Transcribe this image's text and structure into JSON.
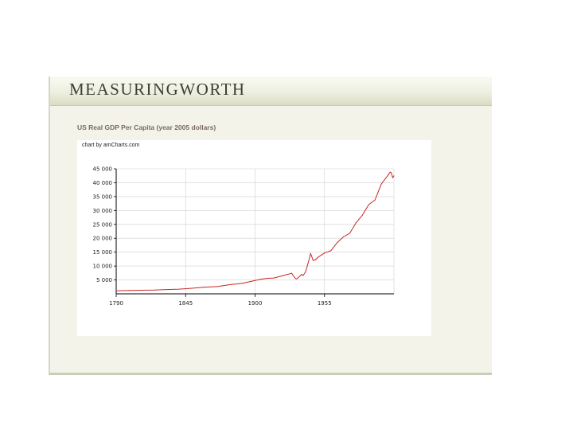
{
  "site": {
    "brand": "MEASURINGWORTH"
  },
  "colors": {
    "line": "#c62828",
    "grid": "#d0d0d0",
    "axis": "#000000"
  },
  "chart_data": {
    "type": "line",
    "title": "US Real GDP Per Capita (year 2005 dollars)",
    "credit": "chart by amCharts.com",
    "xlabel": "",
    "ylabel": "",
    "xlim": [
      1790,
      2010
    ],
    "ylim": [
      0,
      45000
    ],
    "x_ticks": [
      "1790",
      "1845",
      "1900",
      "1955"
    ],
    "y_ticks": [
      "45 000",
      "40 000",
      "35 000",
      "30 000",
      "25 000",
      "20 000",
      "15 000",
      "10 000",
      "5 000"
    ],
    "grid": true,
    "legend": "none",
    "series": [
      {
        "x": [
          1790,
          1800,
          1810,
          1820,
          1830,
          1840,
          1850,
          1860,
          1870,
          1880,
          1890,
          1900,
          1905,
          1910,
          1915,
          1920,
          1925,
          1929,
          1930,
          1932,
          1933,
          1937,
          1938,
          1940,
          1942,
          1944,
          1946,
          1948,
          1950,
          1955,
          1960,
          1965,
          1970,
          1975,
          1980,
          1985,
          1990,
          1995,
          2000,
          2005,
          2007,
          2008,
          2009,
          2010
        ],
        "y": [
          1100,
          1200,
          1300,
          1350,
          1550,
          1700,
          2000,
          2400,
          2600,
          3300,
          3800,
          4800,
          5300,
          5600,
          5700,
          6300,
          6900,
          7400,
          6700,
          5500,
          5400,
          7000,
          6600,
          7900,
          11000,
          14500,
          12000,
          12300,
          13200,
          14700,
          15500,
          18400,
          20500,
          21800,
          25600,
          28300,
          32100,
          33800,
          39500,
          42500,
          43800,
          43500,
          41800,
          42500
        ]
      }
    ]
  }
}
